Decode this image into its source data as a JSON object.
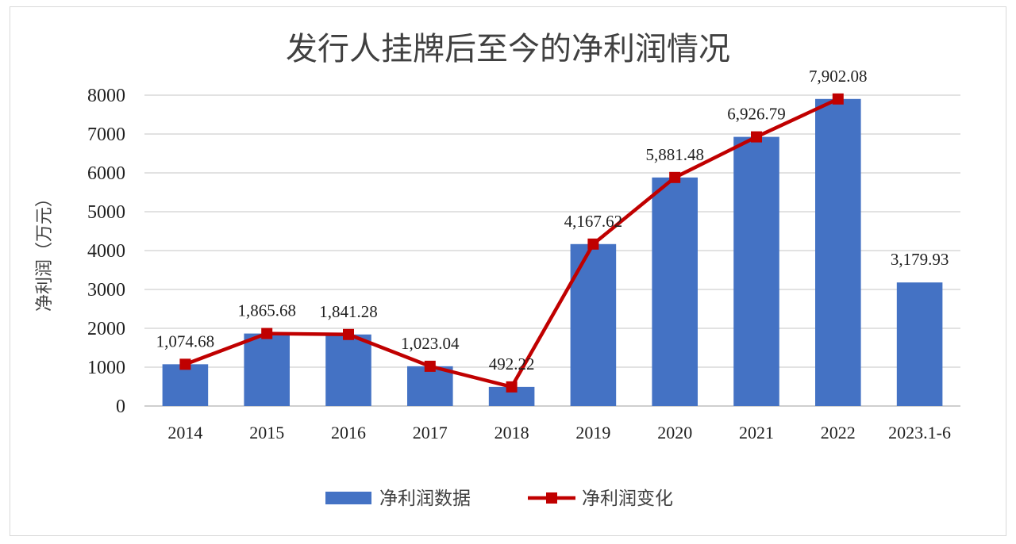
{
  "chart_data": {
    "type": "bar+line",
    "title": "发行人挂牌后至今的净利润情况",
    "xlabel": "",
    "ylabel": "净利润（万元）",
    "ylim": [
      0,
      8000
    ],
    "yticks": [
      0,
      1000,
      2000,
      3000,
      4000,
      5000,
      6000,
      7000,
      8000
    ],
    "grid": true,
    "legend_position": "bottom",
    "categories": [
      "2014",
      "2015",
      "2016",
      "2017",
      "2018",
      "2019",
      "2020",
      "2021",
      "2022",
      "2023.1-6"
    ],
    "series": [
      {
        "name": "净利润数据",
        "type": "bar",
        "color": "#4472C4",
        "values": [
          1074.68,
          1865.68,
          1841.28,
          1023.04,
          492.22,
          4167.62,
          5881.48,
          6926.79,
          7902.08,
          3179.93
        ]
      },
      {
        "name": "净利润变化",
        "type": "line",
        "marker": "square",
        "color": "#C00000",
        "values": [
          1074.68,
          1865.68,
          1841.28,
          1023.04,
          492.22,
          4167.62,
          5881.48,
          6926.79,
          7902.08,
          null
        ]
      }
    ],
    "data_labels": [
      "1,074.68",
      "1,865.68",
      "1,841.28",
      "1,023.04",
      "492.22",
      "4,167.62",
      "5,881.48",
      "6,926.79",
      "7,902.08",
      "3,179.93"
    ]
  }
}
